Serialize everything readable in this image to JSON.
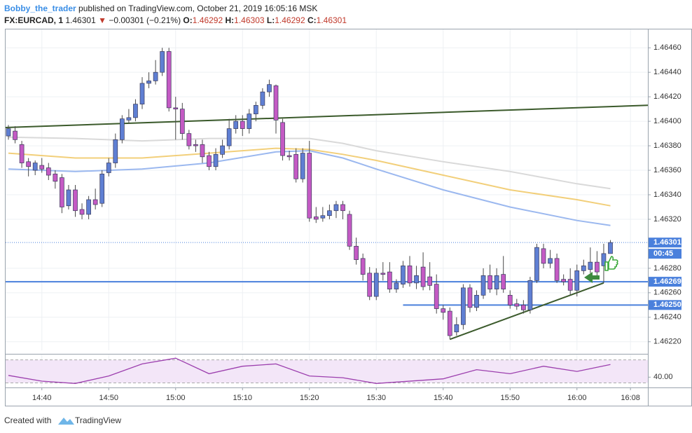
{
  "header": {
    "author": "Bobby_the_trader",
    "published": "published on TradingView.com, October 21, 2019 16:05:16 MSK",
    "symbol": "FX:EURCAD, 1",
    "last": 1.46301,
    "direction": "▼",
    "change": "−0.00301 (−0.21%)",
    "o_label": "O:",
    "open": 1.46292,
    "h_label": "H:",
    "high": 1.46303,
    "l_label": "L:",
    "low": 1.46292,
    "c_label": "C:",
    "close": 1.46301
  },
  "footer": {
    "created": "Created with",
    "brand": "TradingView"
  },
  "chart_data": [
    {
      "type": "candlestick",
      "categories": [
        "14:35",
        "14:36",
        "14:37",
        "14:38",
        "14:39",
        "14:40",
        "14:41",
        "14:42",
        "14:43",
        "14:44",
        "14:45",
        "14:46",
        "14:47",
        "14:48",
        "14:49",
        "14:50",
        "14:51",
        "14:52",
        "14:53",
        "14:54",
        "14:55",
        "14:56",
        "14:57",
        "14:58",
        "14:59",
        "15:00",
        "15:01",
        "15:02",
        "15:03",
        "15:04",
        "15:05",
        "15:06",
        "15:07",
        "15:08",
        "15:09",
        "15:10",
        "15:11",
        "15:12",
        "15:13",
        "15:14",
        "15:15",
        "15:16",
        "15:17",
        "15:18",
        "15:19",
        "15:20",
        "15:21",
        "15:22",
        "15:23",
        "15:24",
        "15:25",
        "15:26",
        "15:27",
        "15:28",
        "15:29",
        "15:30",
        "15:31",
        "15:32",
        "15:33",
        "15:34",
        "15:35",
        "15:36",
        "15:37",
        "15:38",
        "15:39",
        "15:40",
        "15:41",
        "15:42",
        "15:43",
        "15:44",
        "15:45",
        "15:46",
        "15:47",
        "15:48",
        "15:49",
        "15:50",
        "15:51",
        "15:52",
        "15:53",
        "15:54",
        "15:55",
        "15:56",
        "15:57",
        "15:58",
        "15:59",
        "16:00",
        "16:01",
        "16:02",
        "16:03",
        "16:04",
        "16:05"
      ],
      "open": [
        1.46388,
        1.46392,
        1.46381,
        1.46367,
        1.4636,
        1.46364,
        1.46362,
        1.46357,
        1.46354,
        1.46331,
        1.46344,
        1.46328,
        1.46324,
        1.46336,
        1.46333,
        1.46358,
        1.46366,
        1.46385,
        1.46401,
        1.46403,
        1.46414,
        1.46431,
        1.46433,
        1.4644,
        1.46457,
        1.46411,
        1.4641,
        1.4639,
        1.46381,
        1.46381,
        1.46372,
        1.46363,
        1.46373,
        1.4638,
        1.46394,
        1.464,
        1.46394,
        1.46406,
        1.46413,
        1.46424,
        1.46429,
        1.46399,
        1.46372,
        1.46373,
        1.46353,
        1.46374,
        1.46322,
        1.46321,
        1.46323,
        1.46327,
        1.46332,
        1.46324,
        1.46298,
        1.46288,
        1.46276,
        1.46257,
        1.46276,
        1.46277,
        1.46263,
        1.46267,
        1.46282,
        1.46268,
        1.46281,
        1.46273,
        1.46267,
        1.46247,
        1.46245,
        1.46228,
        1.46234,
        1.46264,
        1.46248,
        1.46258,
        1.46274,
        1.46263,
        1.46275,
        1.46258,
        1.46251,
        1.4625,
        1.46246,
        1.4627,
        1.46296,
        1.46284,
        1.46288,
        1.46271,
        1.46271,
        1.46262,
        1.46278,
        1.46279,
        1.46285,
        1.46282,
        1.46292
      ],
      "high": [
        1.46397,
        1.46396,
        1.46384,
        1.4637,
        1.46368,
        1.4637,
        1.46366,
        1.4636,
        1.46357,
        1.46348,
        1.46348,
        1.46333,
        1.46339,
        1.46345,
        1.4636,
        1.4637,
        1.4639,
        1.46405,
        1.4641,
        1.46418,
        1.46436,
        1.4644,
        1.4645,
        1.4646,
        1.4646,
        1.4642,
        1.46415,
        1.46393,
        1.46385,
        1.46385,
        1.46375,
        1.46378,
        1.46385,
        1.46402,
        1.46405,
        1.46405,
        1.4641,
        1.46416,
        1.46427,
        1.46434,
        1.4643,
        1.46402,
        1.46376,
        1.46378,
        1.46378,
        1.46384,
        1.4633,
        1.4633,
        1.46332,
        1.46335,
        1.46335,
        1.46327,
        1.46305,
        1.46292,
        1.46281,
        1.4628,
        1.46285,
        1.46285,
        1.46271,
        1.46286,
        1.4629,
        1.46282,
        1.46293,
        1.46285,
        1.46275,
        1.4625,
        1.46248,
        1.4624,
        1.46267,
        1.46267,
        1.46262,
        1.4628,
        1.46283,
        1.4628,
        1.4629,
        1.46262,
        1.46255,
        1.46254,
        1.46273,
        1.463,
        1.463,
        1.46295,
        1.46292,
        1.46275,
        1.4628,
        1.46283,
        1.46287,
        1.46297,
        1.46294,
        1.463,
        1.46303
      ],
      "low": [
        1.46385,
        1.46382,
        1.46362,
        1.46355,
        1.46356,
        1.46358,
        1.46352,
        1.46345,
        1.46325,
        1.46328,
        1.46322,
        1.4632,
        1.4632,
        1.46328,
        1.4633,
        1.46355,
        1.46362,
        1.46382,
        1.46398,
        1.464,
        1.4641,
        1.46427,
        1.4643,
        1.46437,
        1.46408,
        1.46385,
        1.46385,
        1.46377,
        1.46375,
        1.46366,
        1.4636,
        1.4636,
        1.4637,
        1.46377,
        1.4639,
        1.46388,
        1.4639,
        1.464,
        1.4641,
        1.4642,
        1.4639,
        1.46368,
        1.46368,
        1.4635,
        1.4635,
        1.46318,
        1.46317,
        1.46318,
        1.4632,
        1.46321,
        1.4632,
        1.46295,
        1.46283,
        1.4627,
        1.46254,
        1.46254,
        1.4627,
        1.4626,
        1.4626,
        1.46264,
        1.46265,
        1.46263,
        1.46262,
        1.46262,
        1.46243,
        1.46238,
        1.46222,
        1.46225,
        1.4623,
        1.46244,
        1.46245,
        1.46255,
        1.4626,
        1.46258,
        1.4626,
        1.46247,
        1.46246,
        1.46243,
        1.46243,
        1.46268,
        1.4628,
        1.4628,
        1.46268,
        1.46266,
        1.46258,
        1.46257,
        1.46275,
        1.46276,
        1.46273,
        1.46268,
        1.46292
      ],
      "close": [
        1.46394,
        1.46385,
        1.46366,
        1.46363,
        1.46366,
        1.46361,
        1.46356,
        1.46351,
        1.4633,
        1.46344,
        1.46327,
        1.46324,
        1.46336,
        1.46332,
        1.46357,
        1.46366,
        1.46385,
        1.46402,
        1.46403,
        1.46414,
        1.46431,
        1.46433,
        1.4644,
        1.46457,
        1.46411,
        1.4641,
        1.4639,
        1.4638,
        1.4638,
        1.46371,
        1.46363,
        1.46373,
        1.4638,
        1.46394,
        1.464,
        1.46394,
        1.46406,
        1.46413,
        1.46424,
        1.4643,
        1.46401,
        1.46372,
        1.46371,
        1.46353,
        1.46374,
        1.46321,
        1.4632,
        1.46323,
        1.46327,
        1.46332,
        1.46327,
        1.46298,
        1.46287,
        1.46275,
        1.46257,
        1.46276,
        1.46275,
        1.46263,
        1.46268,
        1.46282,
        1.46268,
        1.46274,
        1.46265,
        1.46266,
        1.46247,
        1.46244,
        1.46225,
        1.46234,
        1.46264,
        1.46248,
        1.46258,
        1.46274,
        1.46263,
        1.46274,
        1.46263,
        1.4625,
        1.46249,
        1.46246,
        1.4627,
        1.46297,
        1.46284,
        1.46288,
        1.4627,
        1.46269,
        1.46262,
        1.46278,
        1.46282,
        1.46285,
        1.46277,
        1.46292,
        1.46301
      ],
      "up_color": "#5f7fd3",
      "down_color": "#c45ac4",
      "ylim": [
        1.46213,
        1.46475
      ],
      "yticks": [
        {
          "value": 1.4646,
          "label": "1.46460"
        },
        {
          "value": 1.4644,
          "label": "1.46440"
        },
        {
          "value": 1.4642,
          "label": "1.46420"
        },
        {
          "value": 1.464,
          "label": "1.46400"
        },
        {
          "value": 1.4638,
          "label": "1.46380"
        },
        {
          "value": 1.4636,
          "label": "1.46360"
        },
        {
          "value": 1.4634,
          "label": "1.46340"
        },
        {
          "value": 1.4632,
          "label": "1.46320"
        },
        {
          "value": 1.4628,
          "label": "1.46280"
        },
        {
          "value": 1.4626,
          "label": "1.46260"
        },
        {
          "value": 1.4624,
          "label": "1.46240"
        },
        {
          "value": 1.4622,
          "label": "1.46220"
        }
      ],
      "xticks": [
        "14:40",
        "14:50",
        "15:00",
        "15:10",
        "15:20",
        "15:30",
        "15:40",
        "15:50",
        "16:00",
        "16:08"
      ],
      "grid": true,
      "lines": [
        {
          "color": "#d9d9d9",
          "x": [
            "14:35",
            "14:45",
            "14:55",
            "15:05",
            "15:15",
            "15:20",
            "15:25",
            "15:30",
            "15:40",
            "15:50",
            "16:00",
            "16:05"
          ],
          "values": [
            1.46387,
            1.46386,
            1.46384,
            1.46386,
            1.46386,
            1.46386,
            1.46382,
            1.46376,
            1.46367,
            1.46359,
            1.46349,
            1.46345
          ]
        },
        {
          "color": "#f2cf7a",
          "x": [
            "14:35",
            "14:45",
            "14:55",
            "15:05",
            "15:15",
            "15:20",
            "15:25",
            "15:30",
            "15:40",
            "15:50",
            "16:00",
            "16:05"
          ],
          "values": [
            1.46374,
            1.4637,
            1.4637,
            1.46374,
            1.46378,
            1.46377,
            1.46373,
            1.46368,
            1.46356,
            1.46344,
            1.46336,
            1.46331
          ]
        },
        {
          "color": "#9bb8ef",
          "x": [
            "14:35",
            "14:45",
            "14:55",
            "15:05",
            "15:15",
            "15:20",
            "15:25",
            "15:30",
            "15:40",
            "15:50",
            "16:00",
            "16:05"
          ],
          "values": [
            1.46361,
            1.46359,
            1.46361,
            1.46366,
            1.46375,
            1.46376,
            1.4637,
            1.46361,
            1.46344,
            1.4633,
            1.46319,
            1.46315
          ]
        }
      ],
      "hlines": [
        {
          "value": 1.46269
        },
        {
          "value": 1.4625,
          "label": "1.46250",
          "from": "15:34"
        }
      ],
      "hline_color": "#4a80dc",
      "trendlines": [
        {
          "color": "#3b5a2b",
          "x": [
            "14:35",
            "16:05"
          ],
          "values": [
            1.46395,
            1.46412
          ],
          "extend": true
        },
        {
          "color": "#3b5a2b",
          "x": [
            "15:41",
            "16:04"
          ],
          "values": [
            1.46222,
            1.46268
          ]
        }
      ],
      "last_price": 1.46301,
      "countdown": "00:45"
    },
    {
      "type": "line",
      "x": [
        "14:35",
        "14:40",
        "14:45",
        "14:50",
        "14:55",
        "15:00",
        "15:05",
        "15:10",
        "15:15",
        "15:20",
        "15:25",
        "15:30",
        "15:40",
        "15:45",
        "15:50",
        "15:55",
        "16:00",
        "16:05"
      ],
      "values": [
        43,
        33,
        29,
        42,
        63,
        73,
        46,
        59,
        63,
        42,
        39,
        29,
        37,
        53,
        46,
        59,
        50,
        62
      ],
      "color": "#9c3fae",
      "ylim": [
        23.3,
        79.3
      ],
      "bands": [
        70,
        30
      ],
      "yticks": [
        {
          "value": 40,
          "label": "40.00"
        }
      ]
    }
  ]
}
